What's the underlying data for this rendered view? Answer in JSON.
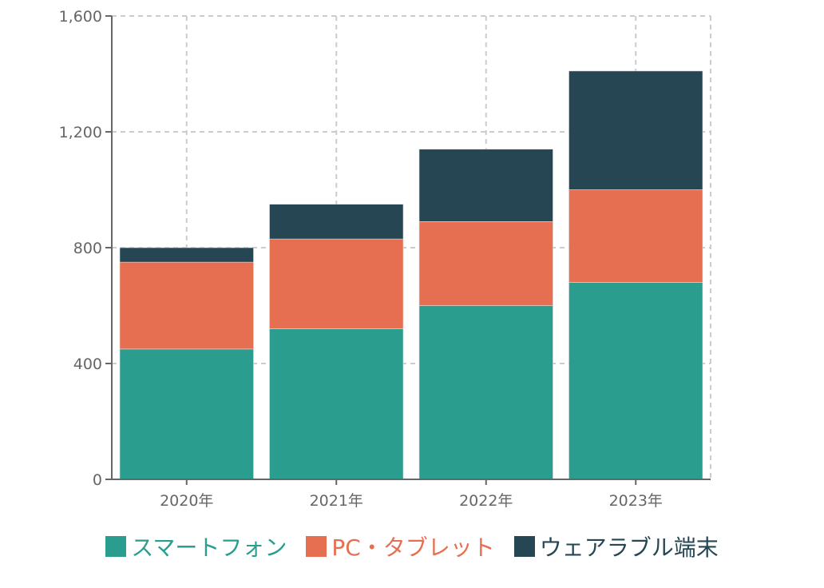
{
  "chart_data": {
    "type": "bar",
    "stacked": true,
    "categories": [
      "2020年",
      "2021年",
      "2022年",
      "2023年"
    ],
    "series": [
      {
        "name": "スマートフォン",
        "values": [
          450,
          520,
          600,
          680
        ],
        "color": "#2a9d8f"
      },
      {
        "name": "PC・タブレット",
        "values": [
          300,
          310,
          290,
          320
        ],
        "color": "#e76f51"
      },
      {
        "name": "ウェアラブル端末",
        "values": [
          50,
          120,
          250,
          410
        ],
        "color": "#264653"
      }
    ],
    "ylim": [
      0,
      1600
    ],
    "yticks": [
      "0",
      "400",
      "800",
      "1,200",
      "1,600"
    ],
    "ytick_values": [
      0,
      400,
      800,
      1200,
      1600
    ],
    "grid": true,
    "legend_position": "bottom",
    "title": "",
    "xlabel": "",
    "ylabel": ""
  }
}
